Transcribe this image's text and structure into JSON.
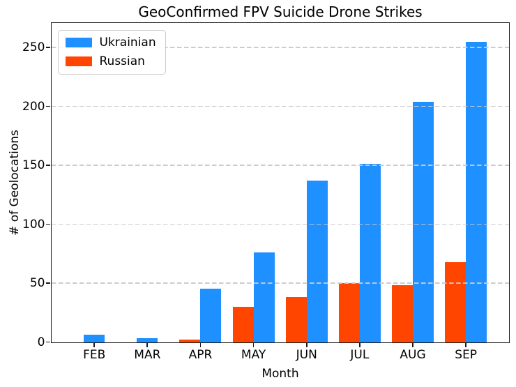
{
  "title": "GeoConfirmed FPV Suicide Drone Strikes",
  "chart_data": {
    "type": "bar",
    "title": "GeoConfirmed FPV Suicide Drone Strikes",
    "xlabel": "Month",
    "ylabel": "# of Geolocations",
    "categories": [
      "FEB",
      "MAR",
      "APR",
      "MAY",
      "JUN",
      "JUL",
      "AUG",
      "SEP"
    ],
    "series": [
      {
        "name": "Ukrainian",
        "color": "#1E90FF",
        "values": [
          6,
          3,
          45,
          76,
          137,
          151,
          204,
          255
        ]
      },
      {
        "name": "Russian",
        "color": "#FF4500",
        "values": [
          null,
          null,
          2,
          30,
          38,
          50,
          48,
          68
        ]
      }
    ],
    "yticks": [
      0,
      50,
      100,
      150,
      200,
      250
    ],
    "ylim": [
      0,
      271
    ],
    "grid": "horizontal-dashed",
    "grid_above_bars": true,
    "legend_position": "upper-left"
  }
}
